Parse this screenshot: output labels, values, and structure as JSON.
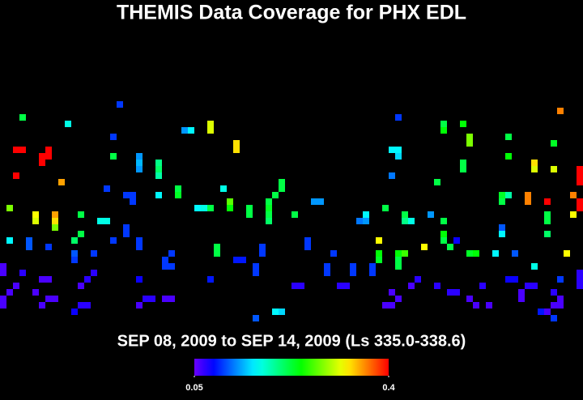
{
  "chart_data": {
    "type": "heatmap",
    "title": "THEMIS Data Coverage for PHX EDL",
    "subtitle": "SEP 08, 2009 to SEP 14, 2009 (Ls 335.0-338.6)",
    "xlim": [
      0,
      90
    ],
    "ylim": [
      36,
      0
    ],
    "clim": [
      0.05,
      0.4
    ],
    "cticks": [
      0.05,
      0.4
    ],
    "x": [
      18,
      3,
      10,
      28,
      29,
      32,
      32,
      17,
      2,
      3,
      7,
      6,
      7,
      6,
      36,
      36,
      17,
      21,
      21,
      21,
      24,
      24,
      24,
      2,
      9,
      16,
      20,
      19,
      20,
      24,
      27,
      27,
      34,
      43,
      43,
      42,
      48,
      49,
      30,
      31,
      32,
      35,
      35,
      38,
      38,
      41,
      41,
      41,
      41,
      45,
      1,
      5,
      5,
      8,
      8,
      8,
      12,
      15,
      16,
      19,
      19,
      55,
      56,
      56,
      59,
      62,
      62,
      63,
      66,
      68,
      68,
      68,
      69,
      61,
      68,
      68,
      71,
      72,
      72,
      78,
      86,
      85,
      78,
      82,
      82,
      85,
      89,
      89,
      89,
      71,
      71,
      67,
      60,
      60,
      61,
      61,
      77,
      78,
      77,
      81,
      81,
      84,
      88,
      89,
      89,
      84,
      84,
      88,
      77,
      77,
      84,
      1,
      4,
      4,
      7,
      11,
      12,
      11,
      11,
      14,
      17,
      21,
      21,
      26,
      25,
      25,
      26,
      33,
      33,
      36,
      37,
      40,
      40,
      39,
      39,
      47,
      47,
      51,
      50,
      50,
      54,
      54,
      57,
      57,
      58,
      58,
      58,
      61,
      61,
      61,
      62,
      65,
      70,
      72,
      73,
      76,
      79,
      82,
      87,
      0,
      0,
      3,
      1,
      2,
      0,
      0,
      6,
      7,
      5,
      7,
      8,
      6,
      13,
      14,
      12,
      21,
      32,
      11,
      12,
      13,
      22,
      23,
      21,
      25,
      26,
      39,
      42,
      43,
      45,
      46,
      52,
      53,
      60,
      61,
      59,
      60,
      64,
      63,
      67,
      69,
      70,
      72,
      73,
      75,
      74,
      78,
      79,
      81,
      82,
      80,
      80,
      83,
      85,
      86,
      86,
      84,
      85,
      86,
      89,
      89,
      89,
      85
    ],
    "y": [
      0,
      2,
      3,
      4,
      4,
      3,
      4,
      5,
      7,
      7,
      7,
      8,
      8,
      9,
      6,
      7,
      8,
      8,
      9,
      10,
      9,
      10,
      11,
      11,
      12,
      13,
      14,
      14,
      15,
      14,
      13,
      14,
      13,
      12,
      13,
      14,
      15,
      15,
      16,
      16,
      16,
      15,
      16,
      16,
      17,
      15,
      16,
      17,
      18,
      17,
      16,
      17,
      18,
      17,
      18,
      19,
      17,
      18,
      18,
      19,
      20,
      18,
      18,
      17,
      16,
      17,
      18,
      18,
      17,
      18,
      20,
      21,
      22,
      2,
      3,
      4,
      3,
      5,
      6,
      5,
      1,
      6,
      8,
      9,
      10,
      10,
      10,
      11,
      12,
      9,
      10,
      12,
      11,
      7,
      7,
      8,
      14,
      14,
      15,
      14,
      15,
      15,
      14,
      15,
      16,
      17,
      18,
      17,
      19,
      20,
      20,
      21,
      21,
      22,
      22,
      21,
      20,
      23,
      24,
      23,
      21,
      21,
      22,
      23,
      24,
      25,
      25,
      22,
      23,
      24,
      24,
      22,
      23,
      25,
      26,
      21,
      22,
      23,
      25,
      26,
      25,
      26,
      25,
      26,
      21,
      23,
      24,
      23,
      24,
      25,
      23,
      22,
      21,
      23,
      23,
      23,
      23,
      25,
      23,
      25,
      26,
      26,
      29,
      28,
      30,
      31,
      27,
      27,
      29,
      30,
      30,
      31,
      27,
      26,
      28,
      27,
      27,
      32,
      31,
      31,
      30,
      30,
      31,
      30,
      30,
      33,
      32,
      32,
      28,
      28,
      28,
      28,
      29,
      30,
      31,
      31,
      27,
      28,
      28,
      29,
      29,
      30,
      31,
      31,
      28,
      27,
      27,
      28,
      28,
      29,
      30,
      32,
      29,
      30,
      31,
      32,
      31,
      27,
      26,
      27,
      28,
      33
    ],
    "values": [
      0.1,
      0.22,
      0.17,
      0.13,
      0.16,
      0.31,
      0.31,
      0.1,
      0.4,
      0.4,
      0.4,
      0.4,
      0.4,
      0.4,
      0.33,
      0.33,
      0.22,
      0.13,
      0.14,
      0.13,
      0.2,
      0.21,
      0.19,
      0.4,
      0.35,
      0.1,
      0.1,
      0.1,
      0.1,
      0.16,
      0.22,
      0.23,
      0.17,
      0.22,
      0.22,
      0.22,
      0.13,
      0.13,
      0.16,
      0.17,
      0.22,
      0.27,
      0.24,
      0.22,
      0.22,
      0.22,
      0.23,
      0.22,
      0.21,
      0.22,
      0.28,
      0.32,
      0.31,
      0.35,
      0.33,
      0.28,
      0.22,
      0.17,
      0.17,
      0.1,
      0.1,
      0.12,
      0.13,
      0.16,
      0.22,
      0.22,
      0.2,
      0.17,
      0.13,
      0.22,
      0.24,
      0.22,
      0.22,
      0.1,
      0.22,
      0.24,
      0.24,
      0.28,
      0.28,
      0.22,
      0.36,
      0.23,
      0.24,
      0.33,
      0.31,
      0.31,
      0.4,
      0.4,
      0.4,
      0.22,
      0.22,
      0.22,
      0.12,
      0.16,
      0.16,
      0.15,
      0.23,
      0.19,
      0.22,
      0.36,
      0.36,
      0.4,
      0.36,
      0.4,
      0.4,
      0.22,
      0.22,
      0.32,
      0.11,
      0.16,
      0.21,
      0.16,
      0.11,
      0.11,
      0.1,
      0.21,
      0.22,
      0.11,
      0.1,
      0.1,
      0.1,
      0.1,
      0.1,
      0.1,
      0.1,
      0.1,
      0.1,
      0.22,
      0.22,
      0.09,
      0.09,
      0.1,
      0.1,
      0.1,
      0.1,
      0.1,
      0.1,
      0.1,
      0.1,
      0.1,
      0.1,
      0.1,
      0.1,
      0.1,
      0.32,
      0.24,
      0.23,
      0.24,
      0.22,
      0.22,
      0.26,
      0.32,
      0.08,
      0.23,
      0.24,
      0.16,
      0.11,
      0.17,
      0.32,
      0.06,
      0.06,
      0.07,
      0.06,
      0.06,
      0.06,
      0.06,
      0.06,
      0.06,
      0.06,
      0.06,
      0.06,
      0.06,
      0.07,
      0.07,
      0.06,
      0.08,
      0.09,
      0.08,
      0.07,
      0.07,
      0.07,
      0.07,
      0.06,
      0.06,
      0.06,
      0.11,
      0.16,
      0.15,
      0.07,
      0.07,
      0.07,
      0.07,
      0.06,
      0.06,
      0.06,
      0.06,
      0.07,
      0.06,
      0.07,
      0.07,
      0.07,
      0.06,
      0.06,
      0.06,
      0.07,
      0.08,
      0.08,
      0.07,
      0.07,
      0.06,
      0.06,
      0.09,
      0.07,
      0.06,
      0.06,
      0.06,
      0.06,
      0.1,
      0.07,
      0.07,
      0.07,
      0.1
    ]
  }
}
